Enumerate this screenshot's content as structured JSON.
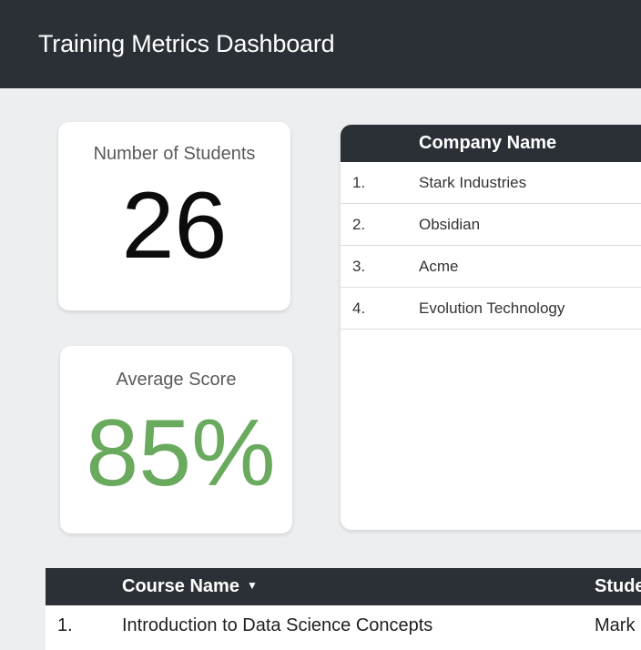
{
  "header": {
    "title": "Training Metrics Dashboard"
  },
  "kpis": {
    "students": {
      "label": "Number of Students",
      "value": "26"
    },
    "average_score": {
      "label": "Average Score",
      "value": "85%",
      "value_color": "#6aaa5e"
    }
  },
  "company_table": {
    "column_name": "Company Name",
    "rows": [
      {
        "index": "1.",
        "name": "Stark Industries"
      },
      {
        "index": "2.",
        "name": "Obsidian"
      },
      {
        "index": "3.",
        "name": "Acme"
      },
      {
        "index": "4.",
        "name": "Evolution Technology"
      }
    ]
  },
  "course_table": {
    "columns": {
      "course": "Course Name",
      "student": "Stude"
    },
    "sort_icon": "caret-down-icon",
    "rows": [
      {
        "index": "1.",
        "course": "Introduction to Data Science Concepts",
        "student": "Mark"
      }
    ]
  }
}
